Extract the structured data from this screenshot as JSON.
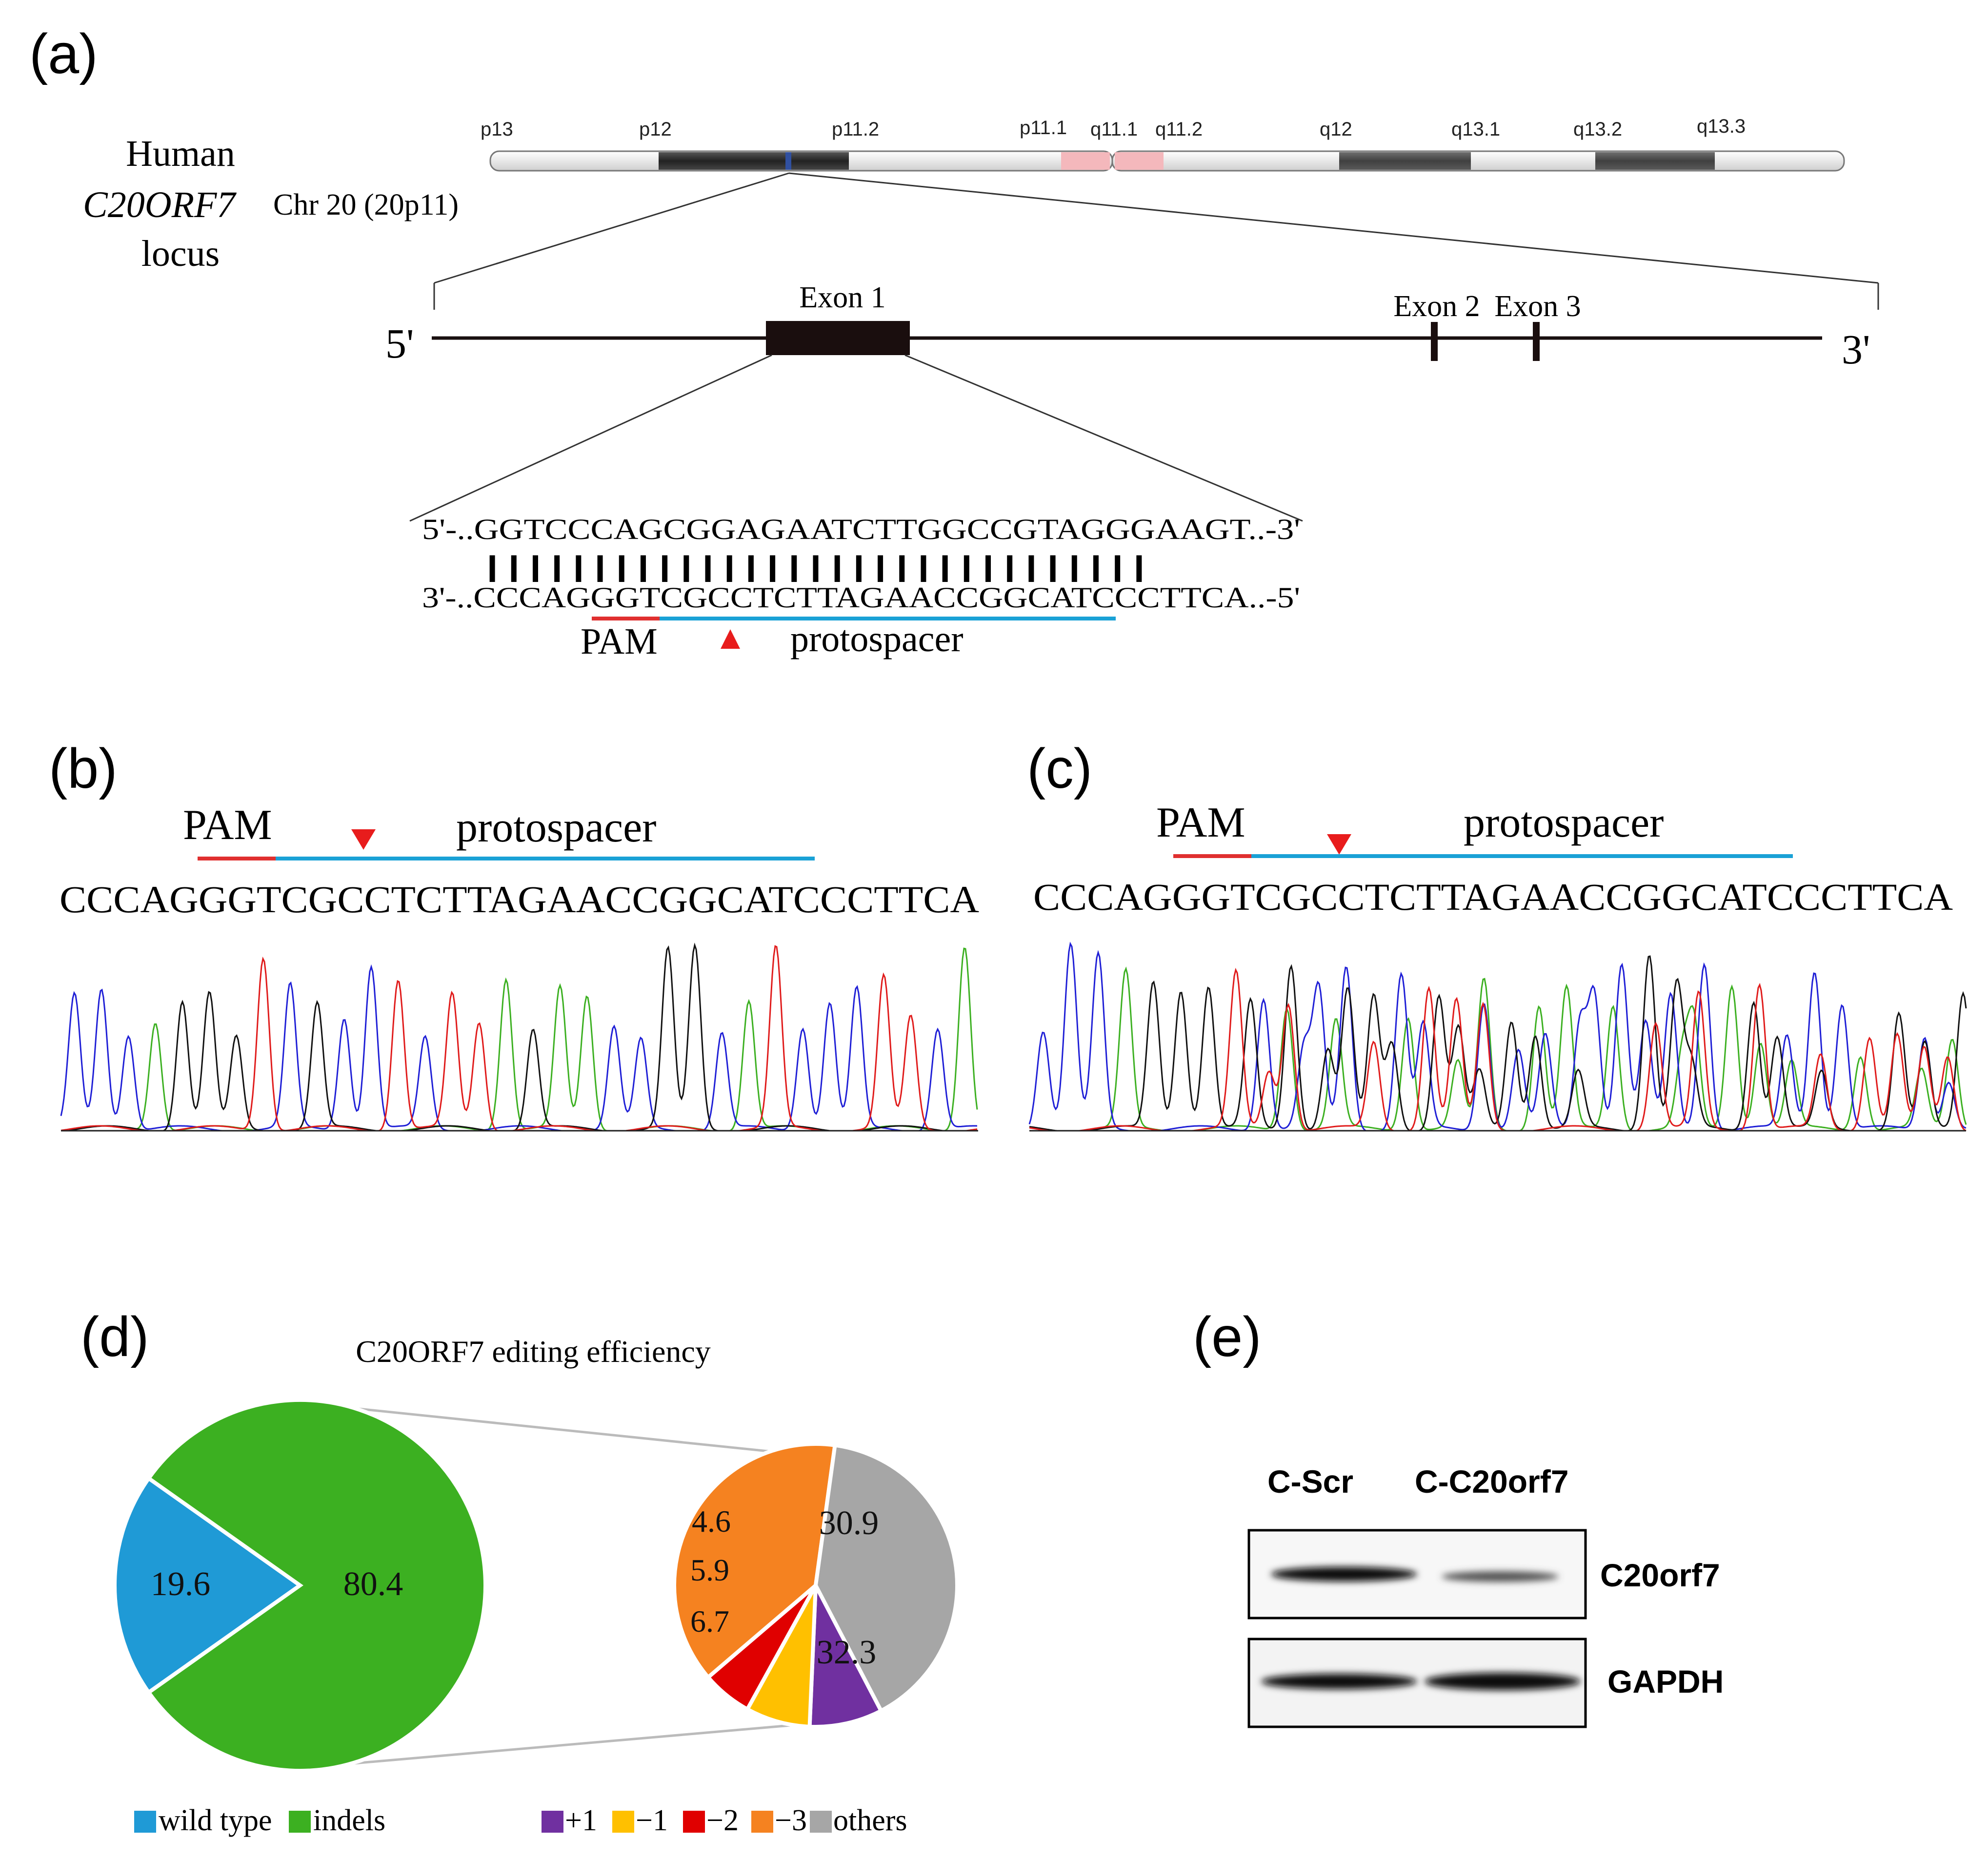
{
  "panels": {
    "a": "(a)",
    "b": "(b)",
    "c": "(c)",
    "d": "(d)",
    "e": "(e)"
  },
  "locus": {
    "line1": "Human",
    "line2_gene": "C20ORF7",
    "line2_chr": "Chr 20 (20p11)",
    "line3": "locus"
  },
  "chromosome_bands": [
    "p13",
    "p12",
    "p11.2",
    "p11.1",
    "q11.1",
    "q11.2",
    "q12",
    "q13.1",
    "q13.2",
    "q13.3"
  ],
  "gene": {
    "five_prime": "5'",
    "three_prime": "3'",
    "exon1": "Exon 1",
    "exon2": "Exon 2",
    "exon3": "Exon 3"
  },
  "sequence": {
    "top": "5'-..GGTCCCAGCGGAGAATCTTGGCCGTAGGGAAGT..-3'",
    "bonds": "|||||||||||||||||||||||||||||||",
    "bottom": "3'-..CCCAGGGTCGCCTCTTAGAACCGGCATCCCTTCA..-5'",
    "pam": "PAM",
    "protospacer": "protospacer"
  },
  "trace_b": {
    "pam": "PAM",
    "protospacer": "protospacer",
    "sequence": "CCCAGGGTCGCCTCTTAGAACCGGCATCCCTTCA"
  },
  "trace_c": {
    "pam": "PAM",
    "protospacer": "protospacer",
    "sequence": "CCCAGGGTCGCCTCTTAGAACCGGCATCCCTTCA"
  },
  "chart_data": [
    {
      "type": "pie",
      "title": "C20ORF7 editing efficiency",
      "categories": [
        "wild type",
        "indels"
      ],
      "values": [
        19.6,
        80.4
      ],
      "value_labels": [
        "19.6",
        "80.4"
      ],
      "colors": [
        "#1f9ad6",
        "#3cb021"
      ],
      "legend": [
        "wild type",
        "indels"
      ]
    },
    {
      "type": "pie",
      "title": "",
      "categories": [
        "+1",
        "−1",
        "−2",
        "−3",
        "others"
      ],
      "values": [
        6.7,
        5.9,
        4.6,
        30.9,
        32.3
      ],
      "value_labels": [
        "6.7",
        "5.9",
        "4.6",
        "30.9",
        "32.3"
      ],
      "colors": [
        "#7030a0",
        "#ffc000",
        "#e00000",
        "#f58220",
        "#a6a6a6"
      ],
      "legend": [
        "+1",
        "−1",
        "−2",
        "−3",
        "others"
      ]
    }
  ],
  "western_blot": {
    "lane1": "C-Scr",
    "lane2": "C-C20orf7",
    "protein1": "C20orf7",
    "protein2": "GAPDH"
  }
}
